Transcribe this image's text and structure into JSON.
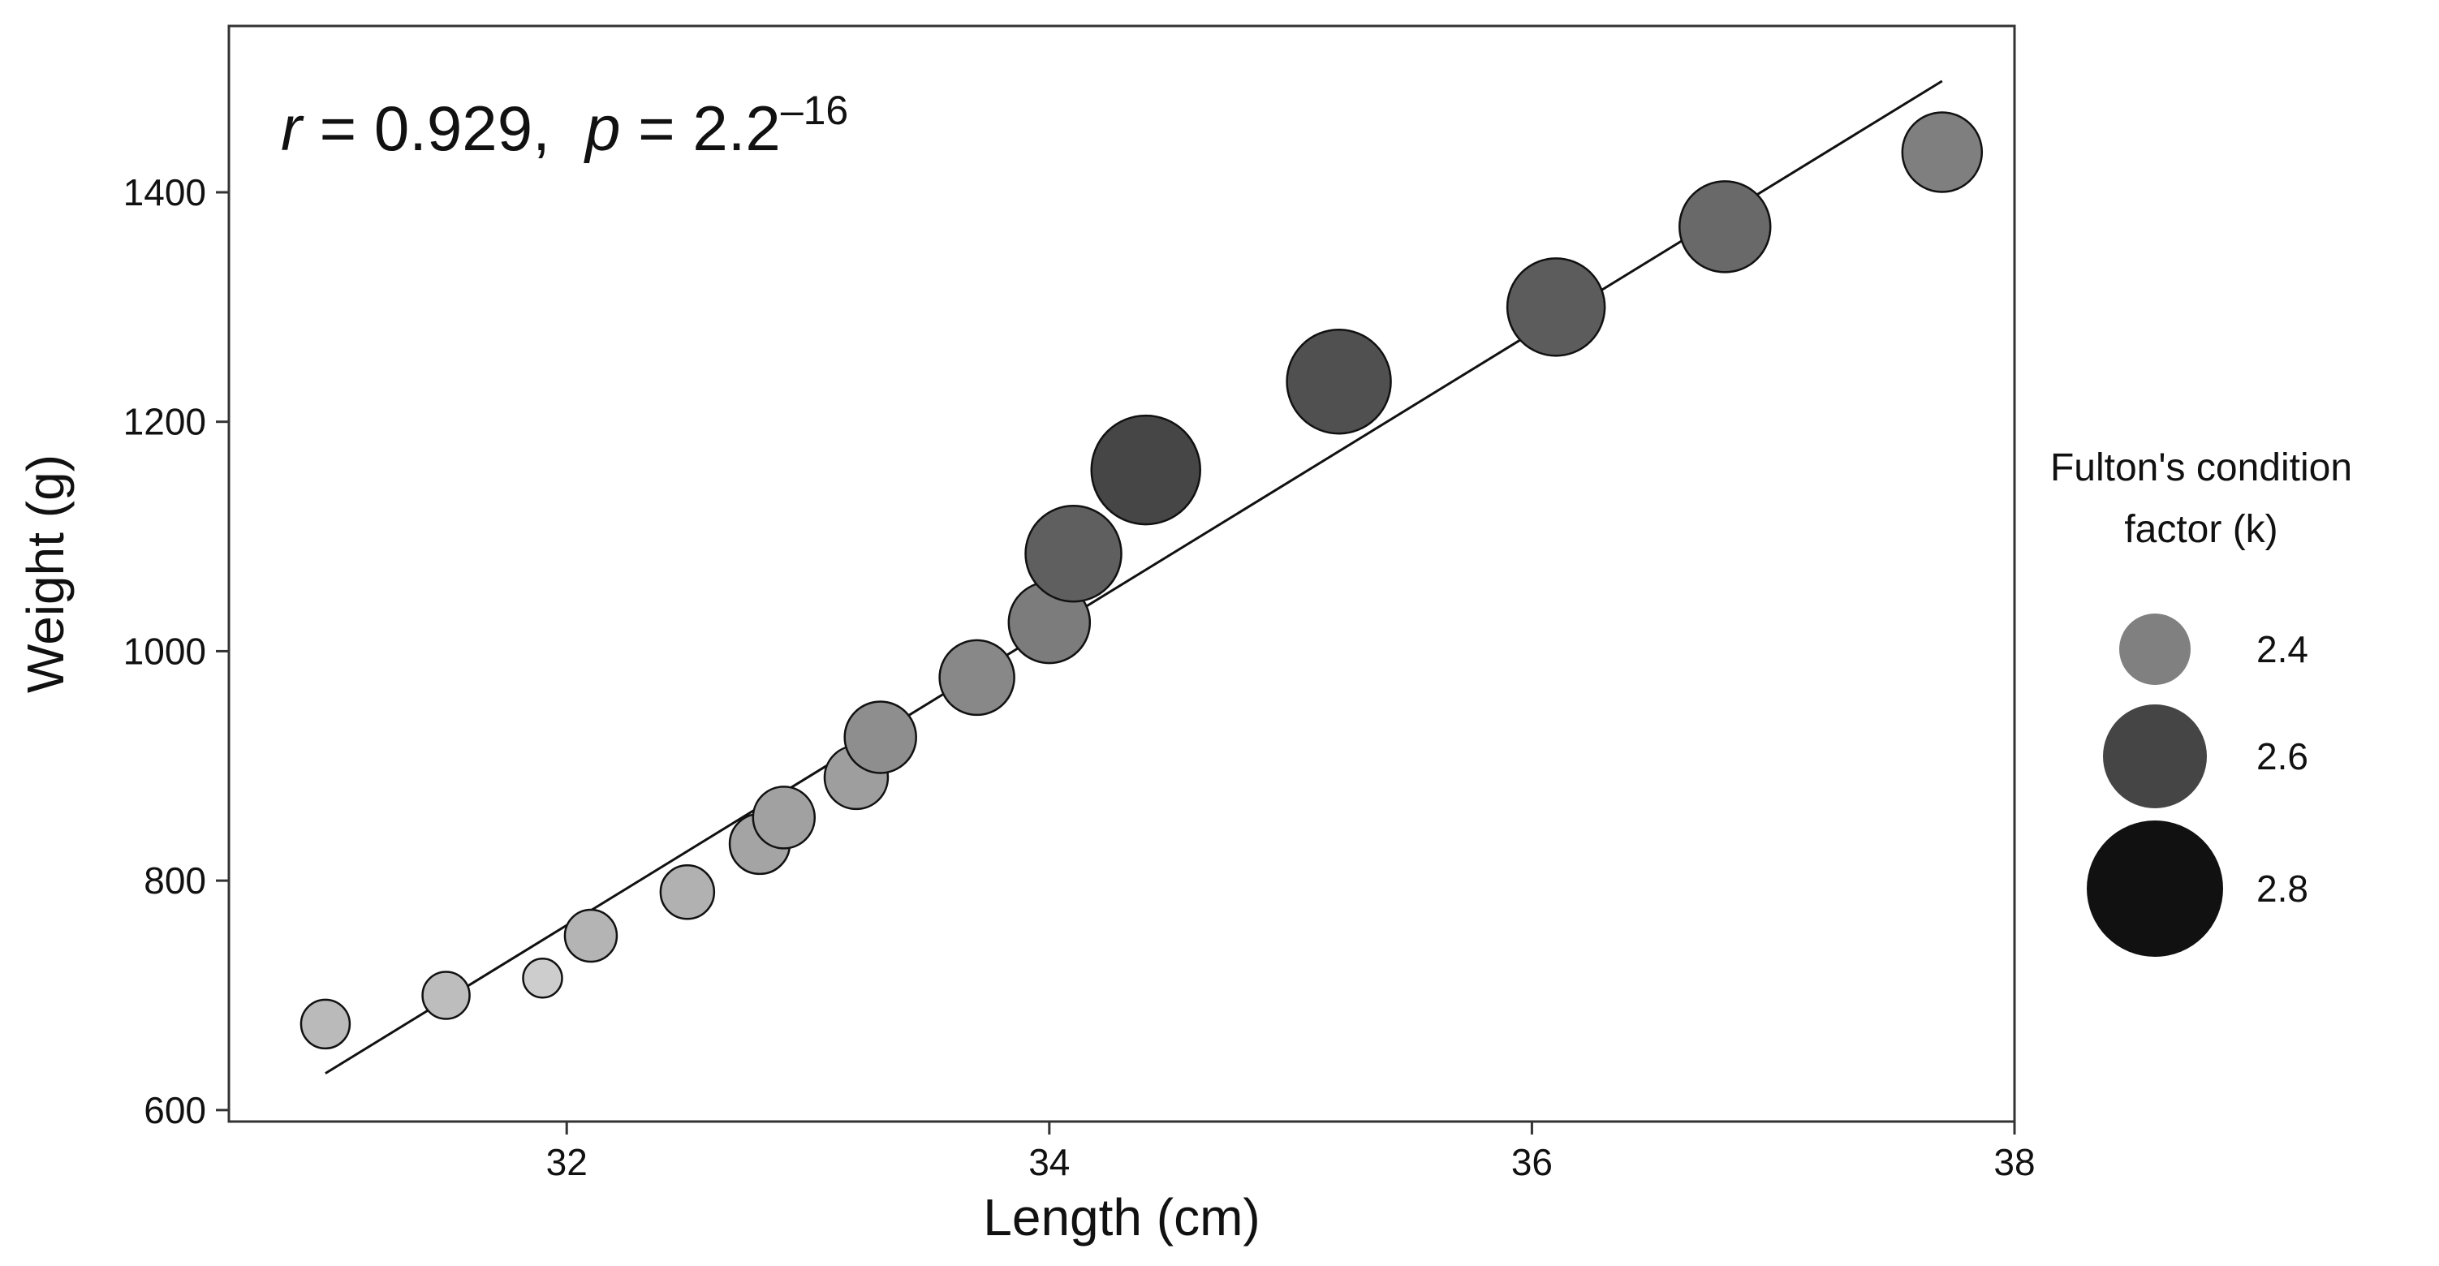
{
  "chart_data": {
    "type": "scatter",
    "xlabel": "Length (cm)",
    "ylabel": "Weight (g)",
    "xlim": [
      30.6,
      38.0
    ],
    "ylim": [
      590,
      1545
    ],
    "x_ticks": [
      32,
      34,
      36,
      38
    ],
    "y_ticks": [
      600,
      800,
      1000,
      1200,
      1400
    ],
    "grid": false,
    "annotation": {
      "r_symbol": "r",
      "r_text": " = 0.929,  ",
      "p_symbol": "p",
      "p_text": " = 2.2",
      "p_exponent": "–16"
    },
    "size_legend": {
      "title_line1": "Fulton's condition",
      "title_line2": "factor (k)",
      "placement": "right",
      "items": [
        {
          "k": 2.4,
          "label": "2.4",
          "color": "#808080"
        },
        {
          "k": 2.6,
          "label": "2.6",
          "color": "#454545"
        },
        {
          "k": 2.8,
          "label": "2.8",
          "color": "#111111"
        }
      ]
    },
    "fit_line": {
      "x": [
        31.0,
        37.7
      ],
      "y": [
        632,
        1497
      ],
      "color": "#111111"
    },
    "points": [
      {
        "x": 31.0,
        "y": 675,
        "k": 2.26
      },
      {
        "x": 31.5,
        "y": 700,
        "k": 2.25
      },
      {
        "x": 31.9,
        "y": 715,
        "k": 2.2
      },
      {
        "x": 32.1,
        "y": 752,
        "k": 2.28
      },
      {
        "x": 32.5,
        "y": 790,
        "k": 2.29
      },
      {
        "x": 32.8,
        "y": 832,
        "k": 2.33
      },
      {
        "x": 32.9,
        "y": 855,
        "k": 2.34
      },
      {
        "x": 33.2,
        "y": 890,
        "k": 2.35
      },
      {
        "x": 33.3,
        "y": 925,
        "k": 2.4
      },
      {
        "x": 33.7,
        "y": 977,
        "k": 2.42
      },
      {
        "x": 34.0,
        "y": 1025,
        "k": 2.46
      },
      {
        "x": 34.1,
        "y": 1085,
        "k": 2.55
      },
      {
        "x": 34.4,
        "y": 1158,
        "k": 2.63
      },
      {
        "x": 35.2,
        "y": 1235,
        "k": 2.6
      },
      {
        "x": 36.1,
        "y": 1300,
        "k": 2.56
      },
      {
        "x": 36.8,
        "y": 1370,
        "k": 2.52
      },
      {
        "x": 37.7,
        "y": 1435,
        "k": 2.45
      }
    ]
  }
}
